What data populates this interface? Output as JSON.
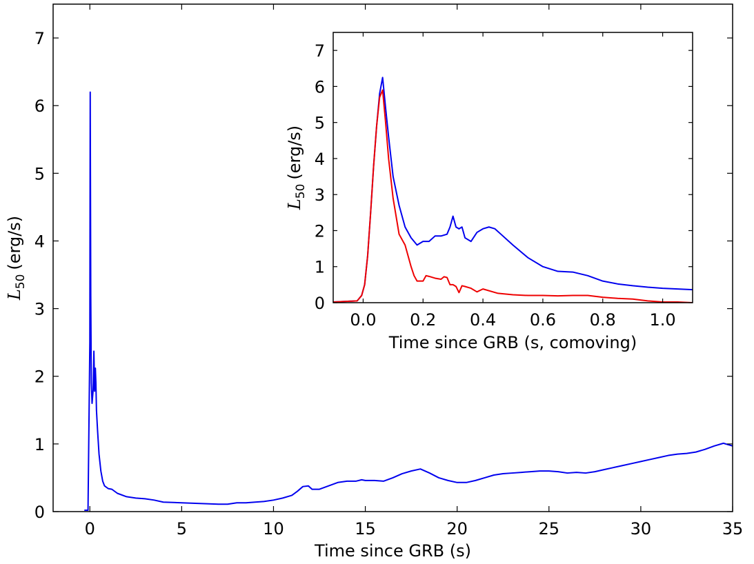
{
  "chart_data": [
    {
      "type": "line",
      "xlabel": "Time since GRB (s)",
      "ylabel": {
        "symbol": "L",
        "subscript": "50",
        "unit": "(erg/s)"
      },
      "xlim": [
        -2,
        35
      ],
      "ylim": [
        0,
        7.5
      ],
      "xticks": [
        0,
        5,
        10,
        15,
        20,
        25,
        30,
        35
      ],
      "yticks": [
        0,
        1,
        2,
        3,
        4,
        5,
        6,
        7
      ],
      "grid": false,
      "series": [
        {
          "color": "#0000ee",
          "x": [
            -0.3,
            -0.1,
            0.0,
            0.02,
            0.05,
            0.08,
            0.12,
            0.18,
            0.22,
            0.26,
            0.3,
            0.33,
            0.36,
            0.42,
            0.5,
            0.6,
            0.7,
            0.8,
            1.0,
            1.2,
            1.5,
            2.0,
            2.5,
            3.0,
            3.5,
            4.0,
            5.0,
            6.0,
            7.0,
            7.5,
            8.0,
            8.5,
            9.0,
            9.5,
            10.0,
            10.5,
            11.0,
            11.3,
            11.6,
            11.9,
            12.1,
            12.5,
            13.0,
            13.5,
            14.0,
            14.5,
            14.8,
            15.0,
            15.5,
            16.0,
            16.5,
            17.0,
            17.5,
            18.0,
            18.5,
            19.0,
            19.5,
            20.0,
            20.5,
            21.0,
            21.5,
            22.0,
            22.5,
            23.0,
            23.5,
            24.0,
            24.5,
            25.0,
            25.5,
            26.0,
            26.5,
            27.0,
            27.5,
            28.0,
            28.5,
            29.0,
            29.5,
            30.0,
            30.5,
            31.0,
            31.5,
            32.0,
            32.5,
            33.0,
            33.5,
            34.0,
            34.5,
            35.0
          ],
          "y": [
            0.02,
            0.02,
            2.5,
            6.2,
            3.2,
            1.9,
            1.6,
            1.8,
            2.37,
            1.78,
            2.12,
            1.9,
            1.5,
            1.2,
            0.85,
            0.6,
            0.45,
            0.38,
            0.34,
            0.33,
            0.27,
            0.22,
            0.2,
            0.19,
            0.17,
            0.14,
            0.13,
            0.12,
            0.11,
            0.11,
            0.13,
            0.13,
            0.14,
            0.15,
            0.17,
            0.2,
            0.24,
            0.3,
            0.37,
            0.38,
            0.33,
            0.33,
            0.38,
            0.43,
            0.45,
            0.45,
            0.47,
            0.46,
            0.46,
            0.45,
            0.5,
            0.56,
            0.6,
            0.63,
            0.57,
            0.5,
            0.46,
            0.43,
            0.43,
            0.46,
            0.5,
            0.54,
            0.56,
            0.57,
            0.58,
            0.59,
            0.6,
            0.6,
            0.59,
            0.57,
            0.58,
            0.57,
            0.59,
            0.62,
            0.65,
            0.68,
            0.71,
            0.74,
            0.77,
            0.8,
            0.83,
            0.85,
            0.86,
            0.88,
            0.92,
            0.97,
            1.01,
            0.97
          ]
        }
      ]
    },
    {
      "type": "line",
      "xlabel": "Time since GRB (s, comoving)",
      "ylabel": {
        "symbol": "L",
        "subscript": "50",
        "unit": "(erg/s)"
      },
      "xlim": [
        -0.1,
        1.1
      ],
      "ylim": [
        0,
        7.5
      ],
      "xticks": [
        0.0,
        0.2,
        0.4,
        0.6,
        0.8,
        1.0
      ],
      "xtick_labels": [
        "0.0",
        "0.2",
        "0.4",
        "0.6",
        "0.8",
        "1.0"
      ],
      "yticks": [
        0,
        1,
        2,
        3,
        4,
        5,
        6,
        7
      ],
      "grid": false,
      "series": [
        {
          "color": "#0000ee",
          "x": [
            -0.1,
            -0.02,
            -0.005,
            0.005,
            0.015,
            0.025,
            0.035,
            0.045,
            0.055,
            0.065,
            0.075,
            0.085,
            0.1,
            0.12,
            0.14,
            0.16,
            0.18,
            0.2,
            0.22,
            0.24,
            0.26,
            0.28,
            0.29,
            0.3,
            0.31,
            0.32,
            0.33,
            0.34,
            0.36,
            0.38,
            0.4,
            0.42,
            0.44,
            0.46,
            0.5,
            0.55,
            0.6,
            0.65,
            0.7,
            0.75,
            0.8,
            0.85,
            0.9,
            0.95,
            1.0,
            1.05,
            1.1
          ],
          "y": [
            0.02,
            0.05,
            0.2,
            0.5,
            1.3,
            2.5,
            3.8,
            4.9,
            5.8,
            6.25,
            5.4,
            4.6,
            3.5,
            2.7,
            2.1,
            1.8,
            1.6,
            1.7,
            1.7,
            1.85,
            1.85,
            1.9,
            2.1,
            2.4,
            2.1,
            2.05,
            2.1,
            1.8,
            1.7,
            1.95,
            2.05,
            2.1,
            2.05,
            1.9,
            1.6,
            1.25,
            1.0,
            0.87,
            0.85,
            0.75,
            0.6,
            0.52,
            0.47,
            0.43,
            0.4,
            0.38,
            0.36
          ]
        },
        {
          "color": "#ee0000",
          "x": [
            -0.1,
            -0.02,
            -0.005,
            0.005,
            0.015,
            0.025,
            0.035,
            0.045,
            0.055,
            0.065,
            0.075,
            0.085,
            0.1,
            0.12,
            0.14,
            0.16,
            0.17,
            0.18,
            0.19,
            0.2,
            0.21,
            0.22,
            0.24,
            0.26,
            0.27,
            0.28,
            0.29,
            0.3,
            0.31,
            0.32,
            0.33,
            0.34,
            0.36,
            0.38,
            0.4,
            0.45,
            0.5,
            0.55,
            0.6,
            0.65,
            0.7,
            0.75,
            0.8,
            0.85,
            0.9,
            0.95,
            1.0,
            1.05,
            1.1
          ],
          "y": [
            0.02,
            0.05,
            0.2,
            0.5,
            1.3,
            2.5,
            3.8,
            4.9,
            5.7,
            5.9,
            5.0,
            4.0,
            2.9,
            1.9,
            1.6,
            1.0,
            0.75,
            0.6,
            0.6,
            0.6,
            0.75,
            0.73,
            0.68,
            0.65,
            0.72,
            0.7,
            0.5,
            0.5,
            0.45,
            0.28,
            0.47,
            0.45,
            0.4,
            0.3,
            0.38,
            0.26,
            0.22,
            0.2,
            0.2,
            0.19,
            0.2,
            0.2,
            0.15,
            0.12,
            0.1,
            0.05,
            0.02,
            0.02,
            0.0
          ]
        }
      ]
    }
  ]
}
